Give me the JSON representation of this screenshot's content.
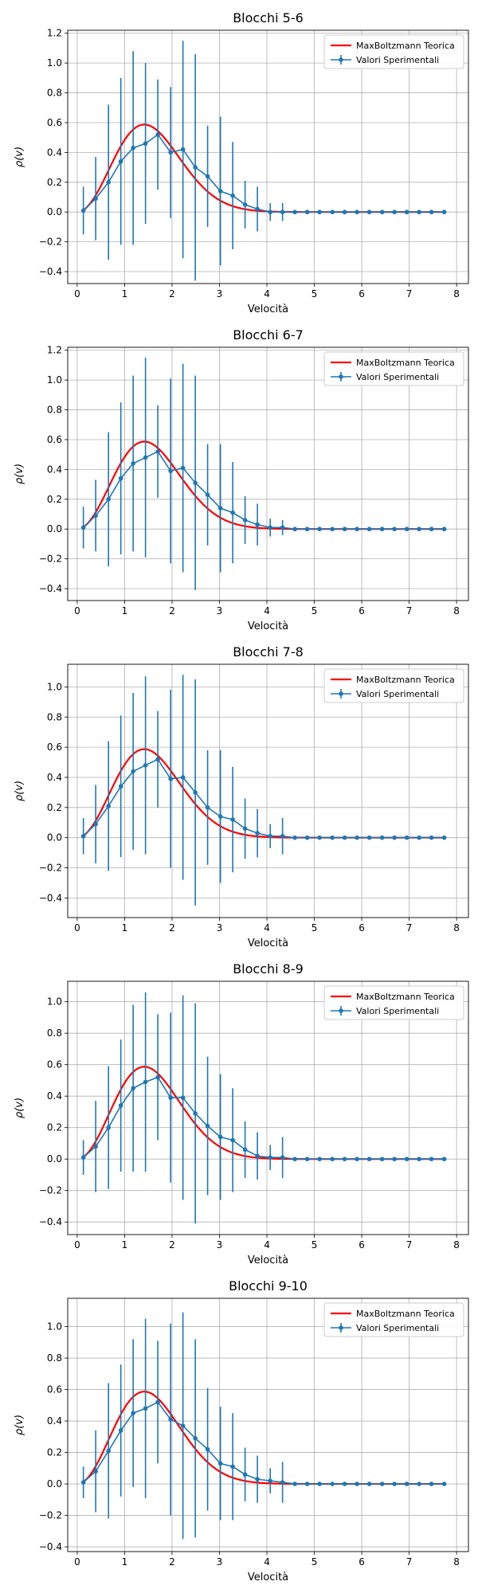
{
  "colors": {
    "theory": "#ff0000",
    "data": "#1f77b4",
    "grid": "#b0b0b0",
    "axes": "#000000",
    "legend_border": "#cccccc"
  },
  "chart_data": [
    {
      "type": "line",
      "title": "Blocchi 5-6",
      "xlabel": "Velocità",
      "ylabel": "ρ(v)",
      "xlim": [
        -0.2,
        8.25
      ],
      "ylim": [
        -0.48,
        1.22
      ],
      "xticks": [
        0,
        1,
        2,
        3,
        4,
        5,
        6,
        7,
        8
      ],
      "yticks": [
        -0.4,
        -0.2,
        0.0,
        0.2,
        0.4,
        0.6,
        0.8,
        1.0,
        1.2
      ],
      "xtick_labels": [
        "0",
        "1",
        "2",
        "3",
        "4",
        "5",
        "6",
        "7",
        "8"
      ],
      "ytick_labels": [
        "−0.4",
        "−0.2",
        "0.0",
        "0.2",
        "0.4",
        "0.6",
        "0.8",
        "1.0",
        "1.2"
      ],
      "grid": true,
      "legend_position": "top-right",
      "legend": [
        "MaxBoltzmann Teorica",
        "Valori Sperimentali"
      ],
      "x": [
        0.13,
        0.39,
        0.66,
        0.92,
        1.18,
        1.44,
        1.7,
        1.97,
        2.23,
        2.49,
        2.75,
        3.02,
        3.28,
        3.54,
        3.8,
        4.07,
        4.33,
        4.59,
        4.85,
        5.11,
        5.38,
        5.64,
        5.9,
        6.16,
        6.43,
        6.69,
        6.95,
        7.21,
        7.47,
        7.74
      ],
      "series": [
        {
          "name": "Valori Sperimentali",
          "values": [
            0.01,
            0.09,
            0.2,
            0.34,
            0.43,
            0.46,
            0.52,
            0.4,
            0.42,
            0.3,
            0.24,
            0.14,
            0.11,
            0.05,
            0.02,
            0.0,
            0.0,
            0.0,
            0.0,
            0.0,
            0.0,
            0.0,
            0.0,
            0.0,
            0.0,
            0.0,
            0.0,
            0.0,
            0.0,
            0.0
          ],
          "errors": [
            0.16,
            0.28,
            0.52,
            0.56,
            0.65,
            0.54,
            0.37,
            0.44,
            0.73,
            0.76,
            0.34,
            0.5,
            0.36,
            0.16,
            0.15,
            0.06,
            0.06,
            0.0,
            0.0,
            0.0,
            0.0,
            0.0,
            0.0,
            0.0,
            0.0,
            0.0,
            0.0,
            0.0,
            0.0,
            0.0
          ]
        }
      ]
    },
    {
      "type": "line",
      "title": "Blocchi 6-7",
      "xlabel": "Velocità",
      "ylabel": "ρ(v)",
      "xlim": [
        -0.2,
        8.25
      ],
      "ylim": [
        -0.48,
        1.22
      ],
      "xticks": [
        0,
        1,
        2,
        3,
        4,
        5,
        6,
        7,
        8
      ],
      "yticks": [
        -0.4,
        -0.2,
        0.0,
        0.2,
        0.4,
        0.6,
        0.8,
        1.0,
        1.2
      ],
      "xtick_labels": [
        "0",
        "1",
        "2",
        "3",
        "4",
        "5",
        "6",
        "7",
        "8"
      ],
      "ytick_labels": [
        "−0.4",
        "−0.2",
        "0.0",
        "0.2",
        "0.4",
        "0.6",
        "0.8",
        "1.0",
        "1.2"
      ],
      "grid": true,
      "legend_position": "top-right",
      "legend": [
        "MaxBoltzmann Teorica",
        "Valori Sperimentali"
      ],
      "x": [
        0.13,
        0.39,
        0.66,
        0.92,
        1.18,
        1.44,
        1.7,
        1.97,
        2.23,
        2.49,
        2.75,
        3.02,
        3.28,
        3.54,
        3.8,
        4.07,
        4.33,
        4.59,
        4.85,
        5.11,
        5.38,
        5.64,
        5.9,
        6.16,
        6.43,
        6.69,
        6.95,
        7.21,
        7.47,
        7.74
      ],
      "series": [
        {
          "name": "Valori Sperimentali",
          "values": [
            0.01,
            0.09,
            0.2,
            0.34,
            0.44,
            0.48,
            0.52,
            0.39,
            0.41,
            0.31,
            0.23,
            0.14,
            0.11,
            0.06,
            0.03,
            0.01,
            0.01,
            0.0,
            0.0,
            0.0,
            0.0,
            0.0,
            0.0,
            0.0,
            0.0,
            0.0,
            0.0,
            0.0,
            0.0,
            0.0
          ],
          "errors": [
            0.14,
            0.24,
            0.45,
            0.51,
            0.59,
            0.67,
            0.31,
            0.62,
            0.7,
            0.72,
            0.34,
            0.43,
            0.34,
            0.16,
            0.14,
            0.06,
            0.05,
            0.0,
            0.0,
            0.0,
            0.0,
            0.0,
            0.0,
            0.0,
            0.0,
            0.0,
            0.0,
            0.0,
            0.0,
            0.0
          ]
        }
      ]
    },
    {
      "type": "line",
      "title": "Blocchi 7-8",
      "xlabel": "Velocità",
      "ylabel": "ρ(v)",
      "xlim": [
        -0.2,
        8.25
      ],
      "ylim": [
        -0.53,
        1.15
      ],
      "xticks": [
        0,
        1,
        2,
        3,
        4,
        5,
        6,
        7,
        8
      ],
      "yticks": [
        -0.4,
        -0.2,
        0.0,
        0.2,
        0.4,
        0.6,
        0.8,
        1.0
      ],
      "xtick_labels": [
        "0",
        "1",
        "2",
        "3",
        "4",
        "5",
        "6",
        "7",
        "8"
      ],
      "ytick_labels": [
        "−0.4",
        "−0.2",
        "0.0",
        "0.2",
        "0.4",
        "0.6",
        "0.8",
        "1.0"
      ],
      "grid": true,
      "legend_position": "top-right",
      "legend": [
        "MaxBoltzmann Teorica",
        "Valori Sperimentali"
      ],
      "x": [
        0.13,
        0.39,
        0.66,
        0.92,
        1.18,
        1.44,
        1.7,
        1.97,
        2.23,
        2.49,
        2.75,
        3.02,
        3.28,
        3.54,
        3.8,
        4.07,
        4.33,
        4.59,
        4.85,
        5.11,
        5.38,
        5.64,
        5.9,
        6.16,
        6.43,
        6.69,
        6.95,
        7.21,
        7.47,
        7.74
      ],
      "series": [
        {
          "name": "Valori Sperimentali",
          "values": [
            0.01,
            0.09,
            0.21,
            0.34,
            0.44,
            0.48,
            0.52,
            0.39,
            0.4,
            0.3,
            0.2,
            0.14,
            0.12,
            0.06,
            0.03,
            0.01,
            0.01,
            0.0,
            0.0,
            0.0,
            0.0,
            0.0,
            0.0,
            0.0,
            0.0,
            0.0,
            0.0,
            0.0,
            0.0,
            0.0
          ],
          "errors": [
            0.12,
            0.26,
            0.43,
            0.47,
            0.52,
            0.59,
            0.32,
            0.59,
            0.68,
            0.75,
            0.38,
            0.44,
            0.35,
            0.2,
            0.16,
            0.08,
            0.12,
            0.0,
            0.0,
            0.0,
            0.0,
            0.0,
            0.0,
            0.0,
            0.0,
            0.0,
            0.0,
            0.0,
            0.0,
            0.0
          ]
        }
      ]
    },
    {
      "type": "line",
      "title": "Blocchi 8-9",
      "xlabel": "Velocità",
      "ylabel": "ρ(v)",
      "xlim": [
        -0.2,
        8.25
      ],
      "ylim": [
        -0.48,
        1.13
      ],
      "xticks": [
        0,
        1,
        2,
        3,
        4,
        5,
        6,
        7,
        8
      ],
      "yticks": [
        -0.4,
        -0.2,
        0.0,
        0.2,
        0.4,
        0.6,
        0.8,
        1.0
      ],
      "xtick_labels": [
        "0",
        "1",
        "2",
        "3",
        "4",
        "5",
        "6",
        "7",
        "8"
      ],
      "ytick_labels": [
        "−0.4",
        "−0.2",
        "0.0",
        "0.2",
        "0.4",
        "0.6",
        "0.8",
        "1.0"
      ],
      "grid": true,
      "legend_position": "top-right",
      "legend": [
        "MaxBoltzmann Teorica",
        "Valori Sperimentali"
      ],
      "x": [
        0.13,
        0.39,
        0.66,
        0.92,
        1.18,
        1.44,
        1.7,
        1.97,
        2.23,
        2.49,
        2.75,
        3.02,
        3.28,
        3.54,
        3.8,
        4.07,
        4.33,
        4.59,
        4.85,
        5.11,
        5.38,
        5.64,
        5.9,
        6.16,
        6.43,
        6.69,
        6.95,
        7.21,
        7.47,
        7.74
      ],
      "series": [
        {
          "name": "Valori Sperimentali",
          "values": [
            0.01,
            0.08,
            0.2,
            0.34,
            0.45,
            0.49,
            0.52,
            0.39,
            0.39,
            0.29,
            0.21,
            0.14,
            0.12,
            0.06,
            0.02,
            0.01,
            0.01,
            0.0,
            0.0,
            0.0,
            0.0,
            0.0,
            0.0,
            0.0,
            0.0,
            0.0,
            0.0,
            0.0,
            0.0,
            0.0
          ],
          "errors": [
            0.11,
            0.29,
            0.39,
            0.42,
            0.53,
            0.57,
            0.4,
            0.54,
            0.65,
            0.7,
            0.44,
            0.4,
            0.33,
            0.18,
            0.15,
            0.08,
            0.13,
            0.0,
            0.0,
            0.0,
            0.0,
            0.0,
            0.0,
            0.0,
            0.0,
            0.0,
            0.0,
            0.0,
            0.0,
            0.0
          ]
        }
      ]
    },
    {
      "type": "line",
      "title": "Blocchi 9-10",
      "xlabel": "Velocità",
      "ylabel": "ρ(v)",
      "xlim": [
        -0.2,
        8.25
      ],
      "ylim": [
        -0.43,
        1.18
      ],
      "xticks": [
        0,
        1,
        2,
        3,
        4,
        5,
        6,
        7,
        8
      ],
      "yticks": [
        -0.4,
        -0.2,
        0.0,
        0.2,
        0.4,
        0.6,
        0.8,
        1.0
      ],
      "xtick_labels": [
        "0",
        "1",
        "2",
        "3",
        "4",
        "5",
        "6",
        "7",
        "8"
      ],
      "ytick_labels": [
        "−0.4",
        "−0.2",
        "0.0",
        "0.2",
        "0.4",
        "0.6",
        "0.8",
        "1.0"
      ],
      "grid": true,
      "legend_position": "top-right",
      "legend": [
        "MaxBoltzmann Teorica",
        "Valori Sperimentali"
      ],
      "x": [
        0.13,
        0.39,
        0.66,
        0.92,
        1.18,
        1.44,
        1.7,
        1.97,
        2.23,
        2.49,
        2.75,
        3.02,
        3.28,
        3.54,
        3.8,
        4.07,
        4.33,
        4.59,
        4.85,
        5.11,
        5.38,
        5.64,
        5.9,
        6.16,
        6.43,
        6.69,
        6.95,
        7.21,
        7.47,
        7.74
      ],
      "series": [
        {
          "name": "Valori Sperimentali",
          "values": [
            0.01,
            0.08,
            0.21,
            0.34,
            0.45,
            0.48,
            0.52,
            0.41,
            0.37,
            0.29,
            0.22,
            0.13,
            0.11,
            0.06,
            0.03,
            0.02,
            0.01,
            0.0,
            0.0,
            0.0,
            0.0,
            0.0,
            0.0,
            0.0,
            0.0,
            0.0,
            0.0,
            0.0,
            0.0,
            0.0
          ],
          "errors": [
            0.1,
            0.26,
            0.43,
            0.42,
            0.47,
            0.57,
            0.39,
            0.61,
            0.72,
            0.63,
            0.39,
            0.36,
            0.34,
            0.17,
            0.15,
            0.08,
            0.13,
            0.0,
            0.0,
            0.0,
            0.0,
            0.0,
            0.0,
            0.0,
            0.0,
            0.0,
            0.0,
            0.0,
            0.0,
            0.0
          ]
        }
      ]
    }
  ]
}
